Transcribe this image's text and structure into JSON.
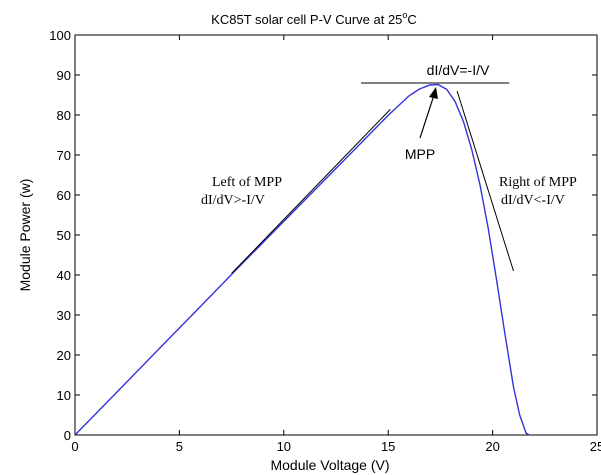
{
  "chart_data": {
    "type": "line",
    "title": "KC85T solar cell P-V Curve at 25",
    "title_super": "o",
    "title_suffix": "C",
    "xlabel": "Module Voltage (V)",
    "ylabel": "Module Power (w)",
    "xlim": [
      0,
      25
    ],
    "ylim": [
      0,
      100
    ],
    "xticks": [
      "0",
      "5",
      "10",
      "15",
      "20",
      "25"
    ],
    "yticks": [
      "0",
      "10",
      "20",
      "30",
      "40",
      "50",
      "60",
      "70",
      "80",
      "90",
      "100"
    ],
    "grid": false,
    "series": [
      {
        "color": "#3333dd",
        "x": [
          0,
          2,
          4,
          6,
          8,
          10,
          12,
          14,
          15,
          16,
          16.5,
          17,
          17.4,
          17.8,
          18.2,
          18.6,
          19,
          19.4,
          19.8,
          20.2,
          20.6,
          21,
          21.3,
          21.6,
          21.75
        ],
        "y": [
          0,
          10.7,
          21.4,
          32.1,
          42.8,
          53.4,
          64,
          74.6,
          79.9,
          84.8,
          86.5,
          87.5,
          87.6,
          86.4,
          83.4,
          78.4,
          71.4,
          62.4,
          51.4,
          38.4,
          25,
          12,
          5,
          0.5,
          -2
        ]
      }
    ],
    "tangents": [
      {
        "name": "horizontal",
        "x": [
          13.7,
          20.8
        ],
        "y": [
          88,
          88
        ]
      },
      {
        "name": "left",
        "x": [
          7.5,
          15.1
        ],
        "y": [
          40.4,
          81.4
        ]
      },
      {
        "name": "right",
        "x": [
          18.3,
          21.0
        ],
        "y": [
          86,
          41
        ]
      }
    ],
    "annotations": {
      "mpp": "MPP",
      "eq_top": "dI/dV=-I/V",
      "left_title": "Left of MPP",
      "left_eq": "dI/dV>-I/V",
      "right_title": "Right of MPP",
      "right_eq": "dI/dV<-I/V"
    },
    "colors": {
      "curve": "#3333dd",
      "tangent": "#000000",
      "axes": "#000000"
    }
  }
}
